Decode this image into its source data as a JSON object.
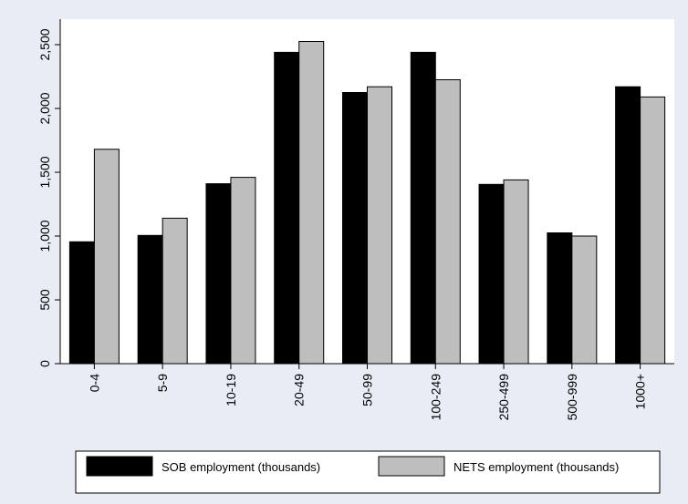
{
  "chart_data": {
    "type": "bar",
    "categories": [
      "0-4",
      "5-9",
      "10-19",
      "20-49",
      "50-99",
      "100-249",
      "250-499",
      "500-999",
      "1000+"
    ],
    "series": [
      {
        "name": "SOB employment (thousands)",
        "values": [
          955,
          1005,
          1410,
          2440,
          2125,
          2440,
          1405,
          1025,
          2170
        ],
        "color": "#000000"
      },
      {
        "name": "NETS employment (thousands)",
        "values": [
          1680,
          1140,
          1460,
          2525,
          2170,
          2225,
          1440,
          1000,
          2090
        ],
        "color": "#bebebe"
      }
    ],
    "y_ticks": [
      0,
      500,
      1000,
      1500,
      2000,
      2500
    ],
    "y_tick_labels": [
      "0",
      "500",
      "1,000",
      "1,500",
      "2,000",
      "2,500"
    ],
    "ylim": [
      0,
      2700
    ],
    "grid": false,
    "legend_position": "bottom",
    "colors": {
      "background": "#e8ecf4",
      "plot_area": "#ffffff"
    }
  }
}
